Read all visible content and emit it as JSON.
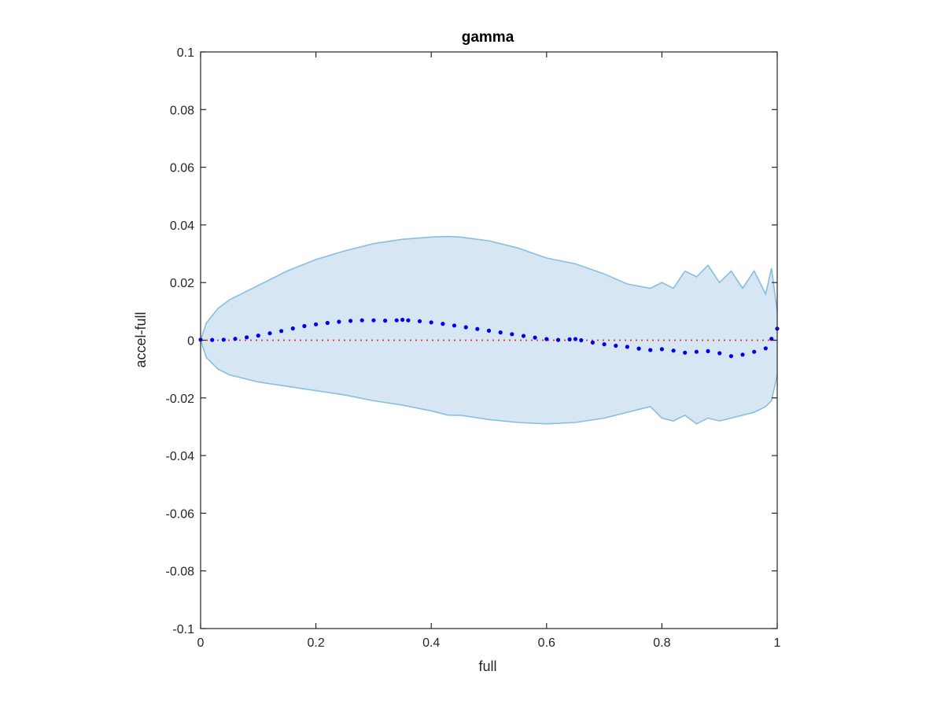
{
  "chart_data": {
    "type": "scatter",
    "title": "gamma",
    "xlabel": "full",
    "ylabel": "accel-full",
    "xlim": [
      0,
      1
    ],
    "ylim": [
      -0.1,
      0.1
    ],
    "xticks": [
      0,
      0.2,
      0.4,
      0.6,
      0.8,
      1
    ],
    "xtick_labels": [
      "0",
      "0.2",
      "0.4",
      "0.6",
      "0.8",
      "1"
    ],
    "yticks": [
      -0.1,
      -0.08,
      -0.06,
      -0.04,
      -0.02,
      0,
      0.02,
      0.04,
      0.06,
      0.08,
      0.1
    ],
    "ytick_labels": [
      "-0.1",
      "-0.08",
      "-0.06",
      "-0.04",
      "-0.02",
      "0",
      "0.02",
      "0.04",
      "0.06",
      "0.08",
      "0.1"
    ],
    "grid": false,
    "colors": {
      "band_fill": "#d6e6f3",
      "band_edge": "#88bfe0",
      "points": "#0000ee",
      "reference": "#ee3333",
      "axes": "#262626"
    },
    "band": {
      "x": [
        0,
        0.01,
        0.03,
        0.05,
        0.1,
        0.15,
        0.2,
        0.25,
        0.3,
        0.35,
        0.4,
        0.43,
        0.45,
        0.5,
        0.55,
        0.6,
        0.65,
        0.7,
        0.74,
        0.78,
        0.8,
        0.82,
        0.84,
        0.86,
        0.88,
        0.9,
        0.92,
        0.94,
        0.96,
        0.98,
        0.99,
        1
      ],
      "upper": [
        0,
        0.006,
        0.011,
        0.014,
        0.019,
        0.024,
        0.028,
        0.031,
        0.0335,
        0.035,
        0.0358,
        0.036,
        0.0358,
        0.0345,
        0.032,
        0.0285,
        0.0265,
        0.023,
        0.0195,
        0.018,
        0.02,
        0.018,
        0.024,
        0.022,
        0.026,
        0.02,
        0.024,
        0.018,
        0.024,
        0.016,
        0.025,
        0.01
      ],
      "lower": [
        0,
        -0.006,
        -0.01,
        -0.012,
        -0.0145,
        -0.016,
        -0.0175,
        -0.019,
        -0.021,
        -0.0225,
        -0.0245,
        -0.026,
        -0.026,
        -0.0275,
        -0.0285,
        -0.029,
        -0.0285,
        -0.027,
        -0.025,
        -0.023,
        -0.027,
        -0.028,
        -0.026,
        -0.029,
        -0.027,
        -0.028,
        -0.027,
        -0.026,
        -0.025,
        -0.023,
        -0.021,
        -0.012
      ]
    },
    "series": [
      {
        "x": [
          0,
          0.02,
          0.04,
          0.06,
          0.08,
          0.1,
          0.12,
          0.14,
          0.16,
          0.18,
          0.2,
          0.22,
          0.24,
          0.26,
          0.28,
          0.3,
          0.32,
          0.34,
          0.35,
          0.36,
          0.38,
          0.4,
          0.42,
          0.44,
          0.46,
          0.48,
          0.5,
          0.52,
          0.54,
          0.56,
          0.58,
          0.6,
          0.62,
          0.64,
          0.65,
          0.66,
          0.68,
          0.7,
          0.72,
          0.74,
          0.76,
          0.78,
          0.8,
          0.82,
          0.84,
          0.86,
          0.88,
          0.9,
          0.92,
          0.94,
          0.96,
          0.98,
          0.99,
          1
        ],
        "values": [
          0.0002,
          0.0001,
          0.0002,
          0.0005,
          0.001,
          0.0016,
          0.0024,
          0.0032,
          0.0041,
          0.0049,
          0.0055,
          0.006,
          0.0064,
          0.0067,
          0.0069,
          0.0069,
          0.0068,
          0.0069,
          0.0071,
          0.0069,
          0.0066,
          0.0062,
          0.0057,
          0.0051,
          0.0045,
          0.0039,
          0.0033,
          0.0027,
          0.0021,
          0.0015,
          0.0009,
          0.0004,
          0.0001,
          0.0003,
          0.0004,
          0.0,
          -0.0008,
          -0.0014,
          -0.0019,
          -0.0023,
          -0.0029,
          -0.0034,
          -0.0031,
          -0.0036,
          -0.0043,
          -0.004,
          -0.0038,
          -0.0045,
          -0.0055,
          -0.005,
          -0.004,
          -0.0028,
          0.0005,
          0.004
        ]
      }
    ],
    "reference_line": {
      "y": 0,
      "style": "dotted"
    }
  }
}
